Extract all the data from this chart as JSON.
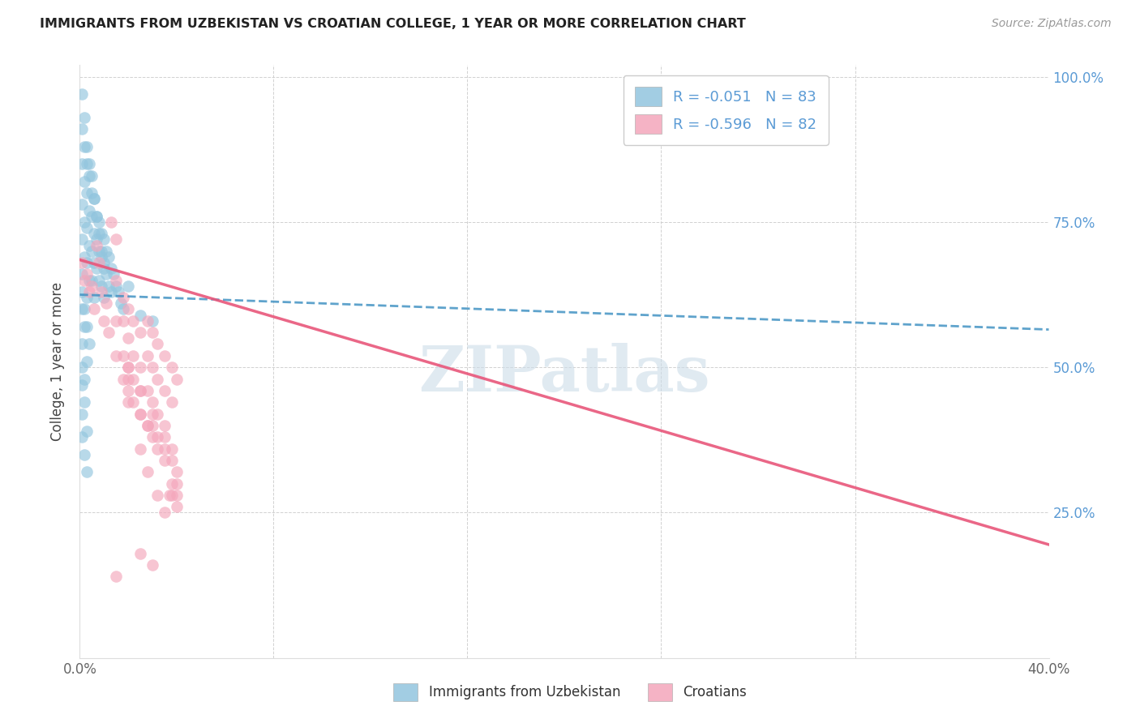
{
  "title": "IMMIGRANTS FROM UZBEKISTAN VS CROATIAN COLLEGE, 1 YEAR OR MORE CORRELATION CHART",
  "source": "Source: ZipAtlas.com",
  "ylabel": "College, 1 year or more",
  "xmin": 0.0,
  "xmax": 0.4,
  "ymin": 0.0,
  "ymax": 1.02,
  "color_blue": "#92c5de",
  "color_pink": "#f4a6bb",
  "color_blue_line": "#4393c3",
  "color_pink_line": "#e8567a",
  "watermark": "ZIPatlas",
  "legend_label1": "Immigrants from Uzbekistan",
  "legend_label2": "Croatians",
  "blue_line_x0": 0.0,
  "blue_line_y0": 0.625,
  "blue_line_x1": 0.4,
  "blue_line_y1": 0.565,
  "pink_line_x0": 0.0,
  "pink_line_y0": 0.685,
  "pink_line_x1": 0.4,
  "pink_line_y1": 0.195,
  "blue_scatter_x": [
    0.001,
    0.002,
    0.003,
    0.004,
    0.005,
    0.006,
    0.007,
    0.008,
    0.009,
    0.01,
    0.001,
    0.003,
    0.005,
    0.007,
    0.009,
    0.011,
    0.013,
    0.015,
    0.017,
    0.002,
    0.004,
    0.006,
    0.008,
    0.01,
    0.012,
    0.014,
    0.016,
    0.018,
    0.001,
    0.003,
    0.005,
    0.007,
    0.009,
    0.011,
    0.013,
    0.002,
    0.004,
    0.006,
    0.008,
    0.01,
    0.012,
    0.001,
    0.003,
    0.005,
    0.007,
    0.009,
    0.002,
    0.004,
    0.006,
    0.008,
    0.001,
    0.003,
    0.005,
    0.01,
    0.002,
    0.004,
    0.006,
    0.001,
    0.003,
    0.02,
    0.001,
    0.002,
    0.025,
    0.001,
    0.003,
    0.03,
    0.002,
    0.004,
    0.001,
    0.003,
    0.001,
    0.002,
    0.001,
    0.002,
    0.001,
    0.003,
    0.001,
    0.002,
    0.003
  ],
  "blue_scatter_y": [
    0.97,
    0.93,
    0.88,
    0.85,
    0.83,
    0.79,
    0.76,
    0.73,
    0.7,
    0.68,
    0.91,
    0.85,
    0.8,
    0.76,
    0.73,
    0.7,
    0.67,
    0.64,
    0.61,
    0.88,
    0.83,
    0.79,
    0.75,
    0.72,
    0.69,
    0.66,
    0.63,
    0.6,
    0.85,
    0.8,
    0.76,
    0.72,
    0.69,
    0.66,
    0.63,
    0.82,
    0.77,
    0.73,
    0.7,
    0.67,
    0.64,
    0.78,
    0.74,
    0.7,
    0.67,
    0.64,
    0.75,
    0.71,
    0.68,
    0.65,
    0.72,
    0.68,
    0.65,
    0.62,
    0.69,
    0.65,
    0.62,
    0.66,
    0.62,
    0.64,
    0.63,
    0.6,
    0.59,
    0.6,
    0.57,
    0.58,
    0.57,
    0.54,
    0.54,
    0.51,
    0.5,
    0.48,
    0.47,
    0.44,
    0.42,
    0.39,
    0.38,
    0.35,
    0.32
  ],
  "pink_scatter_x": [
    0.001,
    0.003,
    0.005,
    0.007,
    0.009,
    0.011,
    0.013,
    0.002,
    0.004,
    0.006,
    0.008,
    0.01,
    0.012,
    0.015,
    0.018,
    0.02,
    0.022,
    0.025,
    0.028,
    0.03,
    0.032,
    0.035,
    0.038,
    0.04,
    0.015,
    0.018,
    0.02,
    0.022,
    0.025,
    0.028,
    0.03,
    0.032,
    0.035,
    0.038,
    0.015,
    0.018,
    0.02,
    0.022,
    0.025,
    0.028,
    0.03,
    0.032,
    0.035,
    0.015,
    0.018,
    0.02,
    0.022,
    0.025,
    0.028,
    0.03,
    0.032,
    0.035,
    0.038,
    0.04,
    0.02,
    0.025,
    0.03,
    0.035,
    0.038,
    0.04,
    0.02,
    0.028,
    0.035,
    0.025,
    0.032,
    0.038,
    0.03,
    0.037,
    0.04,
    0.025,
    0.032,
    0.028,
    0.035,
    0.02,
    0.038,
    0.015,
    0.04,
    0.025,
    0.03
  ],
  "pink_scatter_y": [
    0.68,
    0.66,
    0.64,
    0.71,
    0.63,
    0.61,
    0.75,
    0.65,
    0.63,
    0.6,
    0.68,
    0.58,
    0.56,
    0.72,
    0.62,
    0.6,
    0.58,
    0.56,
    0.58,
    0.56,
    0.54,
    0.52,
    0.5,
    0.48,
    0.65,
    0.58,
    0.55,
    0.52,
    0.5,
    0.52,
    0.5,
    0.48,
    0.46,
    0.44,
    0.58,
    0.52,
    0.5,
    0.48,
    0.46,
    0.46,
    0.44,
    0.42,
    0.4,
    0.52,
    0.48,
    0.46,
    0.44,
    0.42,
    0.4,
    0.38,
    0.38,
    0.36,
    0.34,
    0.32,
    0.5,
    0.46,
    0.42,
    0.38,
    0.36,
    0.3,
    0.48,
    0.4,
    0.34,
    0.42,
    0.36,
    0.3,
    0.4,
    0.28,
    0.26,
    0.36,
    0.28,
    0.32,
    0.25,
    0.44,
    0.28,
    0.14,
    0.28,
    0.18,
    0.16
  ]
}
